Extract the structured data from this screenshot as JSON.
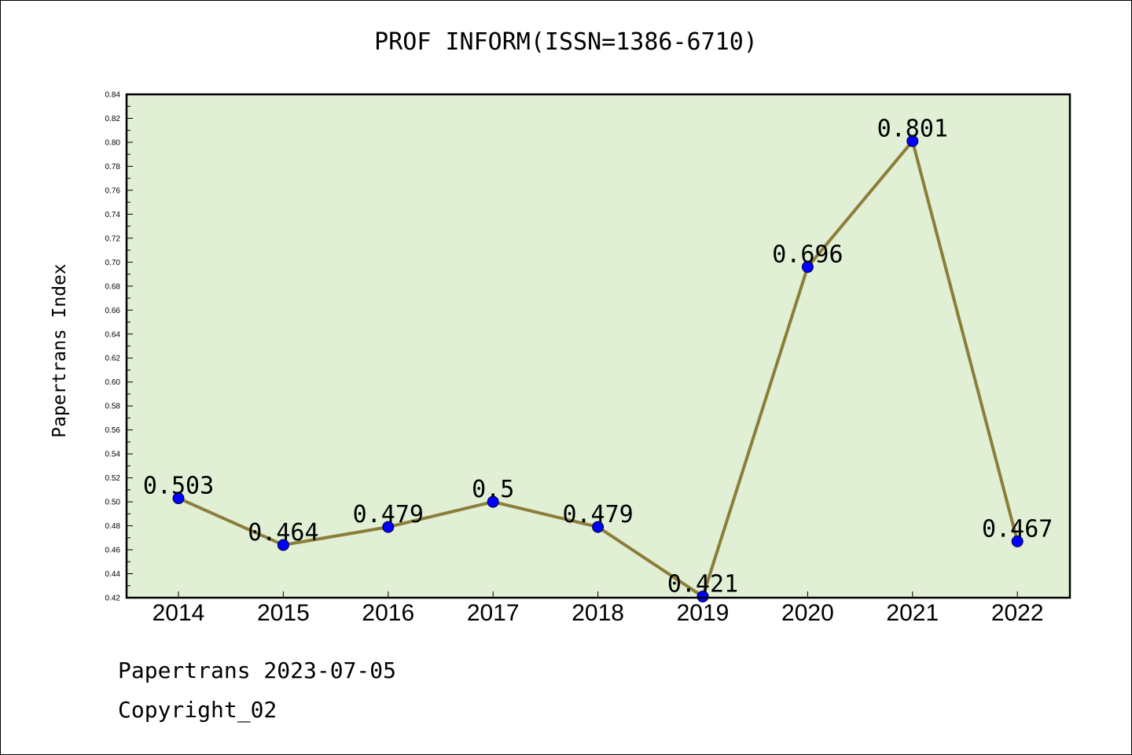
{
  "chart_data": {
    "type": "line",
    "title": "PROF INFORM(ISSN=1386-6710)",
    "ylabel": "Papertrans Index",
    "xlabel": "",
    "categories": [
      "2014",
      "2015",
      "2016",
      "2017",
      "2018",
      "2019",
      "2020",
      "2021",
      "2022"
    ],
    "values": [
      0.503,
      0.464,
      0.479,
      0.5,
      0.479,
      0.421,
      0.696,
      0.801,
      0.467
    ],
    "data_labels": [
      "0.503",
      "0.464",
      "0.479",
      "0.5",
      "0.479",
      "0.421",
      "0.696",
      "0.801",
      "0.467"
    ],
    "ylim": [
      0.42,
      0.84
    ],
    "yticks": [
      "0.42",
      "0.44",
      "0.46",
      "0.48",
      "0.50",
      "0.52",
      "0.54",
      "0.56",
      "0.58",
      "0.60",
      "0.62",
      "0.64",
      "0.66",
      "0.68",
      "0.70",
      "0.72",
      "0.74",
      "0.76",
      "0.78",
      "0.80",
      "0.82",
      "0.84"
    ],
    "grid": false,
    "colors": {
      "plot_bg": "#e1efd5",
      "line": "#8c7e3a",
      "marker": "#0000ff"
    }
  },
  "footer": {
    "line1": "Papertrans 2023-07-05",
    "line2": "Copyright_02"
  }
}
